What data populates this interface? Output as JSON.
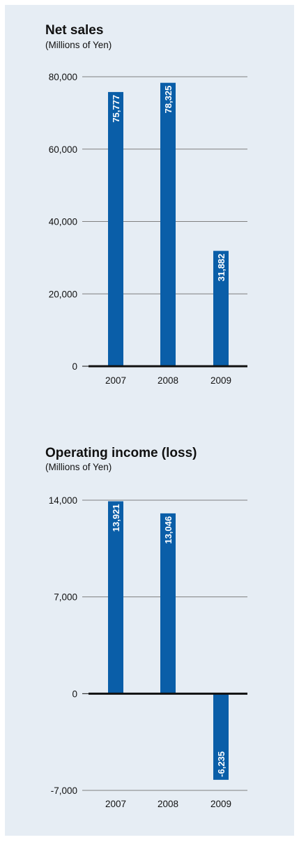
{
  "chart_data": [
    {
      "type": "bar",
      "title": "Net sales",
      "subtitle": "(Millions of Yen)",
      "categories": [
        "2007",
        "2008",
        "2009"
      ],
      "values": [
        75777,
        78325,
        31882
      ],
      "value_labels": [
        "75,777",
        "78,325",
        "31,882"
      ],
      "ylim": [
        0,
        80000
      ],
      "yticks": [
        0,
        20000,
        40000,
        60000,
        80000
      ],
      "ytick_labels": [
        "0",
        "20,000",
        "40,000",
        "60,000",
        "80,000"
      ],
      "xlabel": "",
      "ylabel": "",
      "grid": true,
      "bar_color": "#0a5ea8"
    },
    {
      "type": "bar",
      "title": "Operating income (loss)",
      "subtitle": "(Millions of Yen)",
      "categories": [
        "2007",
        "2008",
        "2009"
      ],
      "values": [
        13921,
        13046,
        -6235
      ],
      "value_labels": [
        "13,921",
        "13,046",
        "-6,235"
      ],
      "ylim": [
        -7000,
        14000
      ],
      "yticks": [
        -7000,
        0,
        7000,
        14000
      ],
      "ytick_labels": [
        "-7,000",
        "0",
        "7,000",
        "14,000"
      ],
      "xlabel": "",
      "ylabel": "",
      "grid": true,
      "bar_color": "#0a5ea8"
    }
  ],
  "colors": {
    "panel_background": "#e6edf4",
    "gridline": "#7f7f7f",
    "zero_axis": "#111111"
  }
}
